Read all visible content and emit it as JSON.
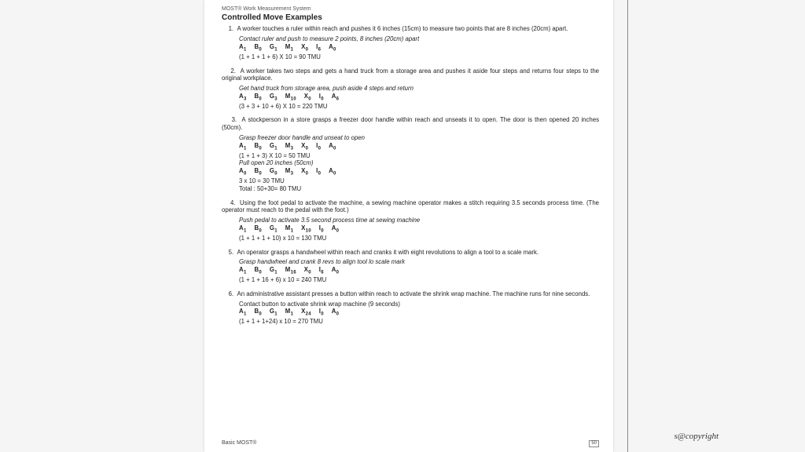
{
  "header": {
    "system": "MOST® Work Measurement System",
    "title": "Controlled Move Examples"
  },
  "examples": [
    {
      "num": "1.",
      "text": "A worker touches a ruler within reach and pushes it 6 inches (15cm) to measure two points that are 8 inches (20cm) apart.",
      "blocks": [
        {
          "desc": "Contact ruler and push to measure 2 points, 8 inches (20cm) apart",
          "seq": "A₁    B₀    G₁    M₁    X₀    I₆    A₀",
          "calc": "(1 + 1 + 1 + 6) X 10 = 90 TMU"
        }
      ]
    },
    {
      "num": "2.",
      "text": "A worker takes two steps and gets a hand truck from a storage area and pushes it aside four steps and returns four steps to the original workplace.",
      "blocks": [
        {
          "desc": "Get hand truck from storage area, push aside 4 steps and return",
          "seq": "A₃    B₀    G₃    M₁₀    X₀    I₀    A₆",
          "calc": "(3 + 3 + 10 + 6) X 10 = 220 TMU"
        }
      ]
    },
    {
      "num": "3.",
      "text": "A stockperson in a store grasps a freezer door handle within reach and unseats it to open. The door is then opened 20 inches (50cm).",
      "blocks": [
        {
          "desc": "Grasp freezer door handle and unseat to open",
          "seq": "A₁    B₀    G₁    M₃    X₀    I₀    A₀",
          "calc": "(1 + 1 + 3) X 10 = 50 TMU"
        },
        {
          "desc": "Pull open 20 inches (50cm)",
          "seq": "A₀   B₀   G₀   M₃   X₀   I₀   A₀",
          "calc": "3 x 10 = 30 TMU",
          "extra": "Total : 50+30= 80 TMU"
        }
      ]
    },
    {
      "num": "4.",
      "text": "Using the foot pedal to activate the machine, a sewing machine operator makes a stitch requiring 3.5 seconds process time. (The operator must reach to the pedal with the foot.)",
      "blocks": [
        {
          "desc": "Push pedal to activate 3.5 second process time at sewing machine",
          "seq": "A₁   B₀   G₁   M₁   X₁₀   I₀   A₀",
          "calc": "(1 + 1 + 1 + 10) x 10 = 130 TMU"
        }
      ]
    },
    {
      "num": "5.",
      "text": "An operator grasps a handwheel within reach and cranks it with eight revolutions to align a tool to a scale mark.",
      "blocks": [
        {
          "desc": "Grasp handwheel and crank 8 revs to align tool lo scale mark",
          "seq": "A₁   B₀   G₁   M₁₆   X₀   I₆   A₀",
          "calc": "(1 + 1 + 16 + 6) x 10 = 240 TMU"
        }
      ]
    },
    {
      "num": "6.",
      "text": "An administrative assistant presses a button within reach to activate the shrink wrap machine. The machine runs for nine seconds.",
      "blocks": [
        {
          "desc": "Contact button to activate shrink wrap machine (9 seconds)",
          "seq": "A₁   B₀   G₁   M₁   X₂₄   I₀   A₀",
          "calc": "(1 + 1 + 1+24) x 10 = 270 TMU",
          "desc_plain": true
        }
      ]
    }
  ],
  "footer": {
    "left": "Basic MOST®",
    "page": "50"
  },
  "watermark": "s@copyright"
}
